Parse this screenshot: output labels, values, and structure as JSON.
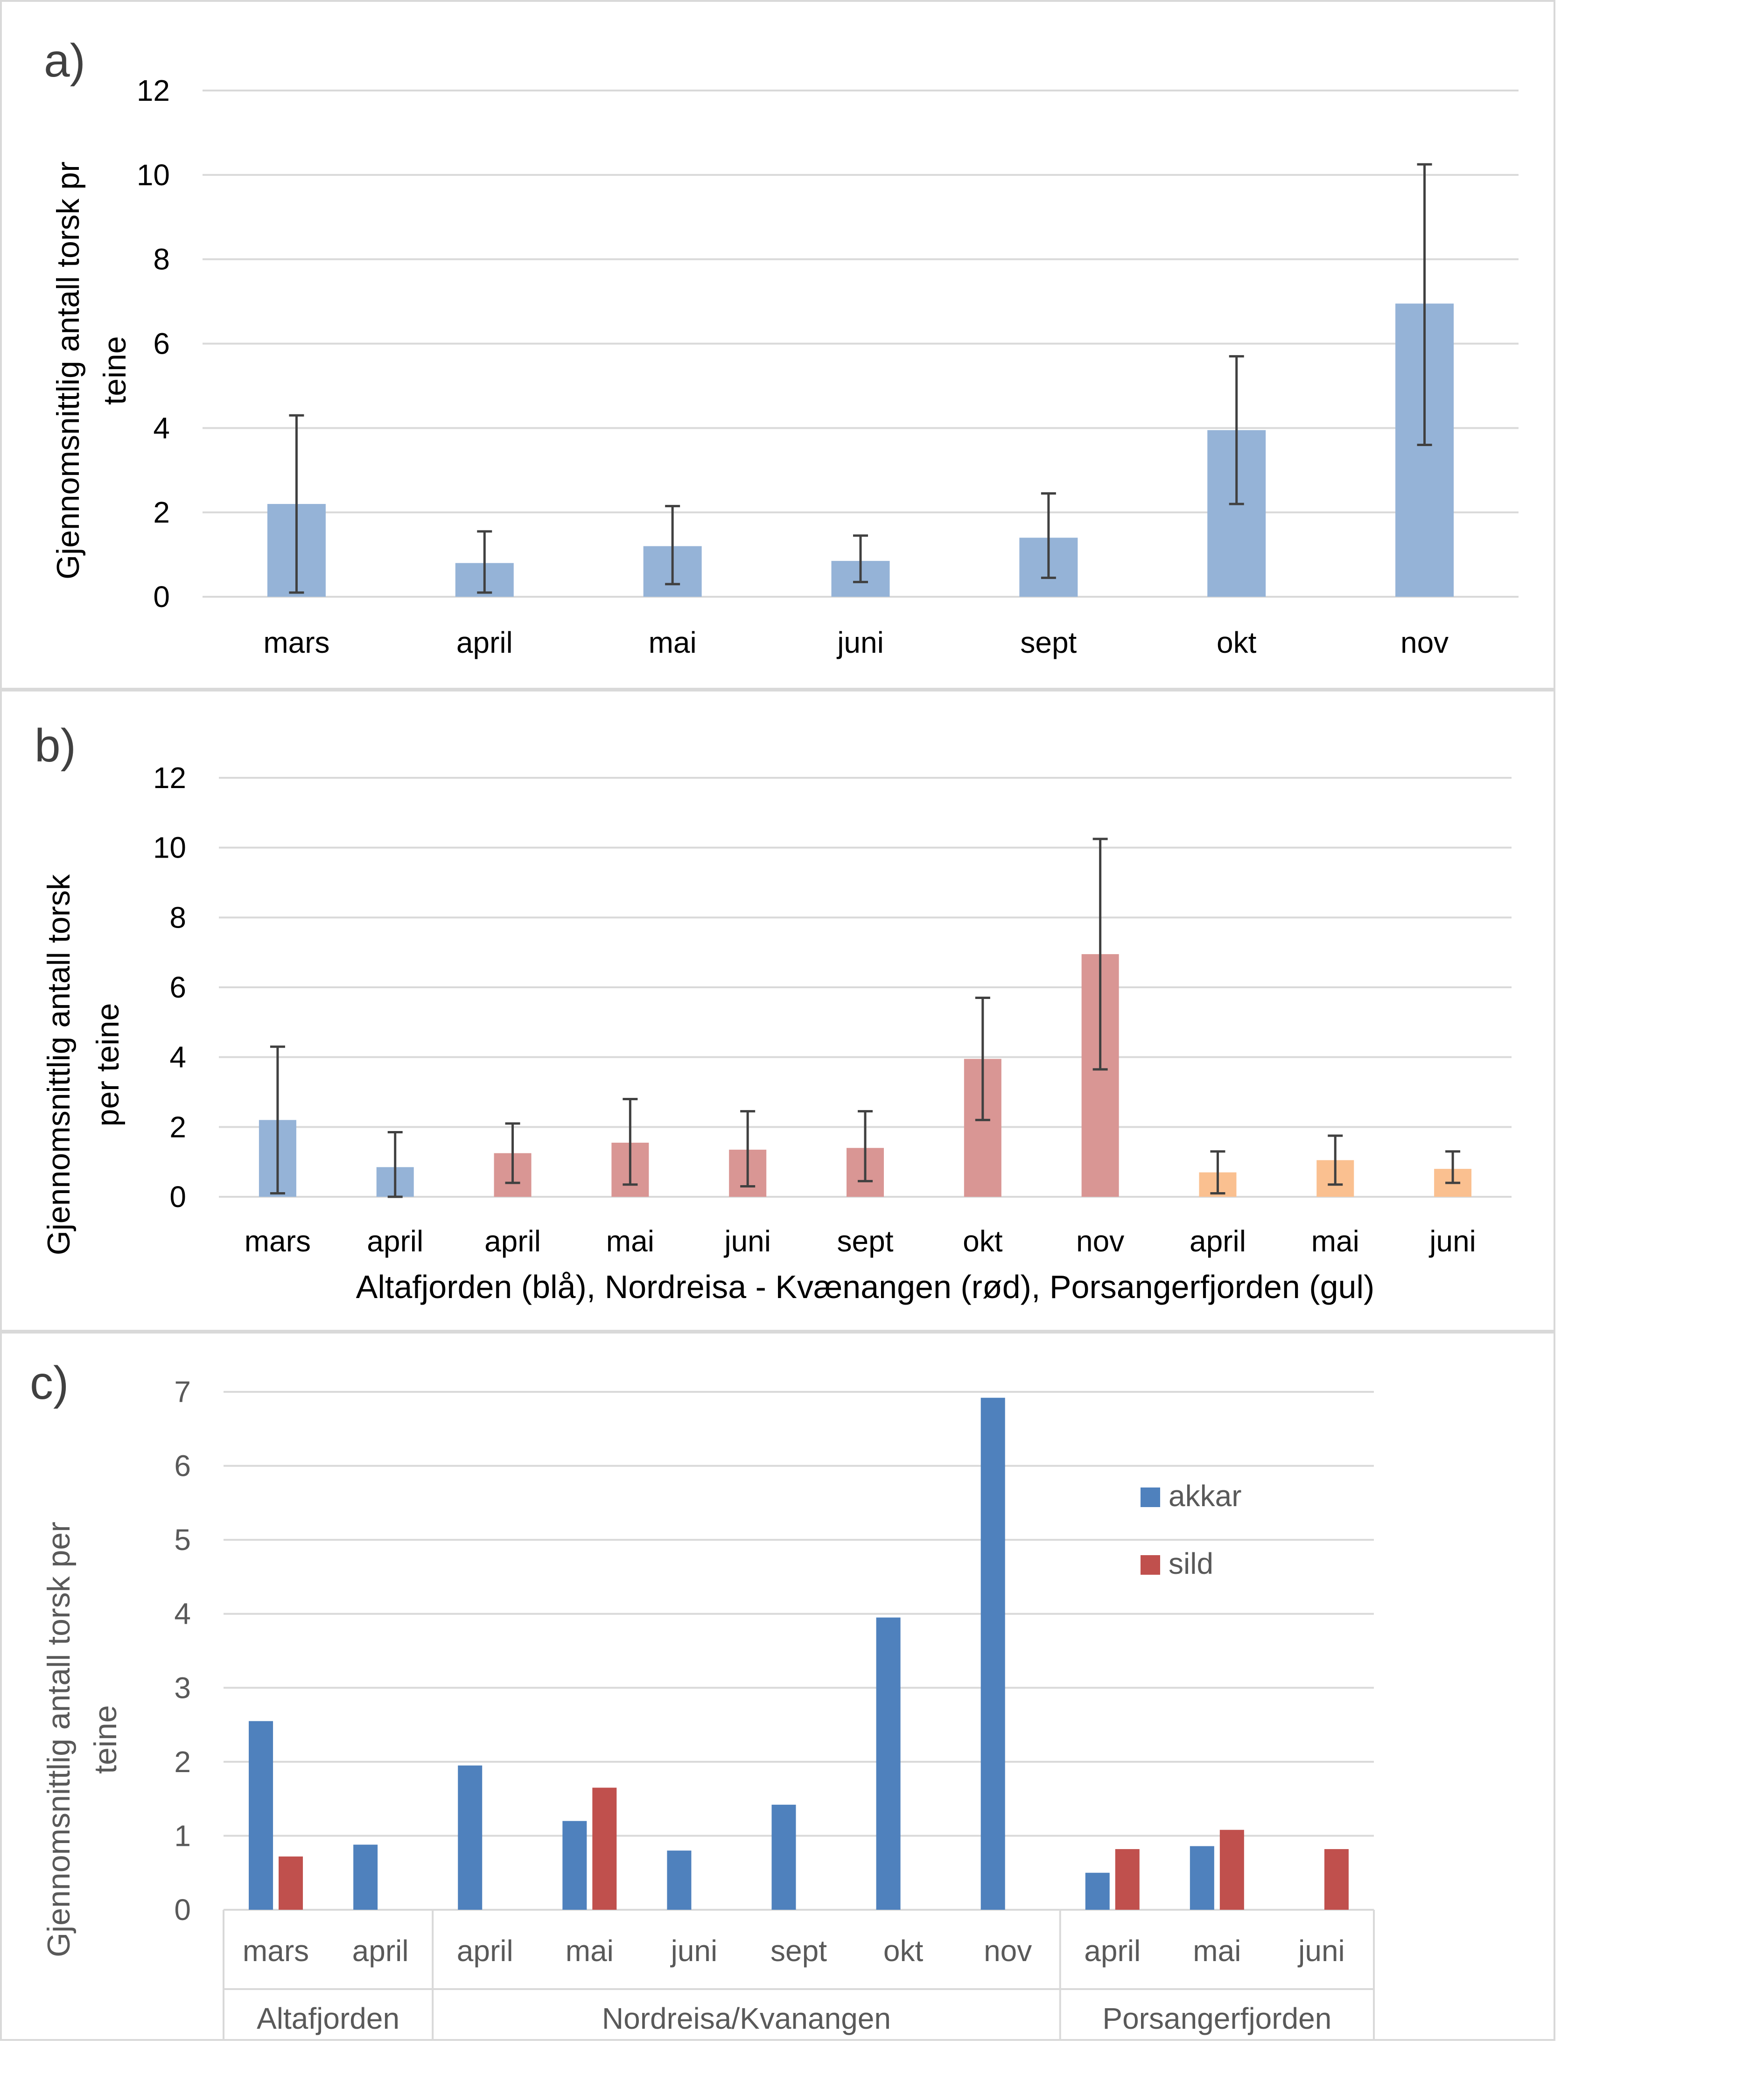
{
  "chart_data": [
    {
      "panel_label": "a)",
      "type": "bar",
      "categories": [
        "mars",
        "april",
        "mai",
        "juni",
        "sept",
        "okt",
        "nov"
      ],
      "values": [
        2.2,
        0.8,
        1.2,
        0.85,
        1.4,
        3.95,
        6.95
      ],
      "err_low": [
        0.1,
        0.1,
        0.3,
        0.35,
        0.45,
        2.2,
        3.6
      ],
      "err_high": [
        4.3,
        1.55,
        2.15,
        1.45,
        2.45,
        5.7,
        10.25
      ],
      "colors": [
        "#95b3d7",
        "#95b3d7",
        "#95b3d7",
        "#95b3d7",
        "#95b3d7",
        "#95b3d7",
        "#95b3d7"
      ],
      "ylabel_lines": [
        "Gjennomsnittlig antall torsk pr",
        "teine"
      ],
      "ylim": [
        0,
        12
      ],
      "yticks": [
        "0",
        "2",
        "4",
        "6",
        "8",
        "10",
        "12"
      ],
      "grid": true
    },
    {
      "panel_label": "b)",
      "type": "bar",
      "categories": [
        "mars",
        "april",
        "april",
        "mai",
        "juni",
        "sept",
        "okt",
        "nov",
        "april",
        "mai",
        "juni"
      ],
      "values": [
        2.2,
        0.85,
        1.25,
        1.55,
        1.35,
        1.4,
        3.95,
        6.95,
        0.7,
        1.05,
        0.8
      ],
      "err_low": [
        0.1,
        0.0,
        0.4,
        0.35,
        0.3,
        0.45,
        2.2,
        3.65,
        0.1,
        0.35,
        0.4
      ],
      "err_high": [
        4.3,
        1.85,
        2.1,
        2.8,
        2.45,
        2.45,
        5.7,
        10.25,
        1.3,
        1.75,
        1.3
      ],
      "colors": [
        "#95b3d7",
        "#95b3d7",
        "#d99694",
        "#d99694",
        "#d99694",
        "#d99694",
        "#d99694",
        "#d99694",
        "#fac090",
        "#fac090",
        "#fac090"
      ],
      "xlabel": "Altafjorden (blå), Nordreisa - Kvænangen  (rød), Porsangerfjorden (gul)",
      "ylabel_lines": [
        "Gjennomsnittlig antall torsk",
        "per teine"
      ],
      "ylim": [
        0,
        12
      ],
      "yticks": [
        "0",
        "2",
        "4",
        "6",
        "8",
        "10",
        "12"
      ],
      "grid": true
    },
    {
      "panel_label": "c)",
      "type": "bar",
      "categories": [
        "mars",
        "april",
        "april",
        "mai",
        "juni",
        "sept",
        "okt",
        "nov",
        "april",
        "mai",
        "juni"
      ],
      "groups": [
        {
          "name": "Altafjorden",
          "count": 2
        },
        {
          "name": "Nordreisa/Kvanangen",
          "count": 6
        },
        {
          "name": "Porsangerfjorden",
          "count": 3
        }
      ],
      "series": [
        {
          "name": "akkar",
          "color": "#4f81bd",
          "values": [
            2.55,
            0.88,
            1.95,
            1.2,
            0.8,
            1.42,
            3.95,
            6.92,
            0.5,
            0.86,
            null
          ]
        },
        {
          "name": "sild",
          "color": "#c0504d",
          "values": [
            0.72,
            null,
            null,
            1.65,
            null,
            null,
            null,
            null,
            0.82,
            1.08,
            0.82
          ]
        }
      ],
      "ylabel_lines": [
        "Gjennomsnittlig antall torsk per",
        "teine"
      ],
      "ylim": [
        0,
        7
      ],
      "yticks": [
        "0",
        "1",
        "2",
        "3",
        "4",
        "5",
        "6",
        "7"
      ],
      "legend_position": "right",
      "grid": true
    }
  ]
}
